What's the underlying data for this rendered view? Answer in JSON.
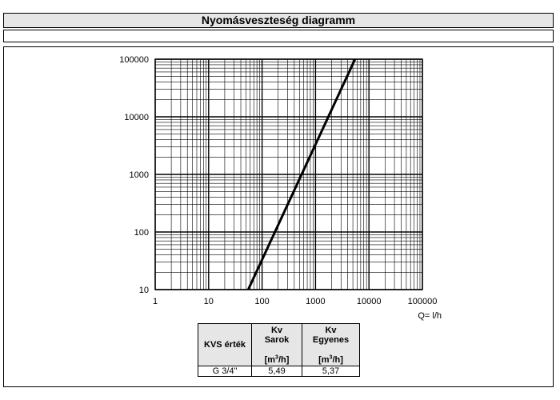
{
  "page": {
    "title": "Nyomásveszteség diagramm"
  },
  "chart_data": {
    "type": "line",
    "title": "",
    "xlabel": "Q= l/h",
    "ylabel": "",
    "x_scale": "log",
    "y_scale": "log",
    "xlim": [
      1,
      100000
    ],
    "ylim": [
      10,
      100000
    ],
    "x_ticks": [
      "1",
      "10",
      "100",
      "1000",
      "10000",
      "100000"
    ],
    "y_ticks": [
      "10",
      "100",
      "1000",
      "10000",
      "100000"
    ],
    "grid": true,
    "series": [
      {
        "color": "#000000",
        "x": [
          55,
          5490
        ],
        "y": [
          10,
          100000
        ]
      }
    ]
  },
  "kv_table": {
    "col1_header": "KVS érték",
    "col2_header_top": "Kv",
    "col2_header_mid": "Sarok",
    "col3_header_top": "Kv",
    "col3_header_mid": "Egyenes",
    "unit_pre": "[m",
    "unit_sup": "3",
    "unit_post": "/h]",
    "row_label": "G 3/4\"",
    "sarok_value": "5,49",
    "egyenes_value": "5,37"
  }
}
